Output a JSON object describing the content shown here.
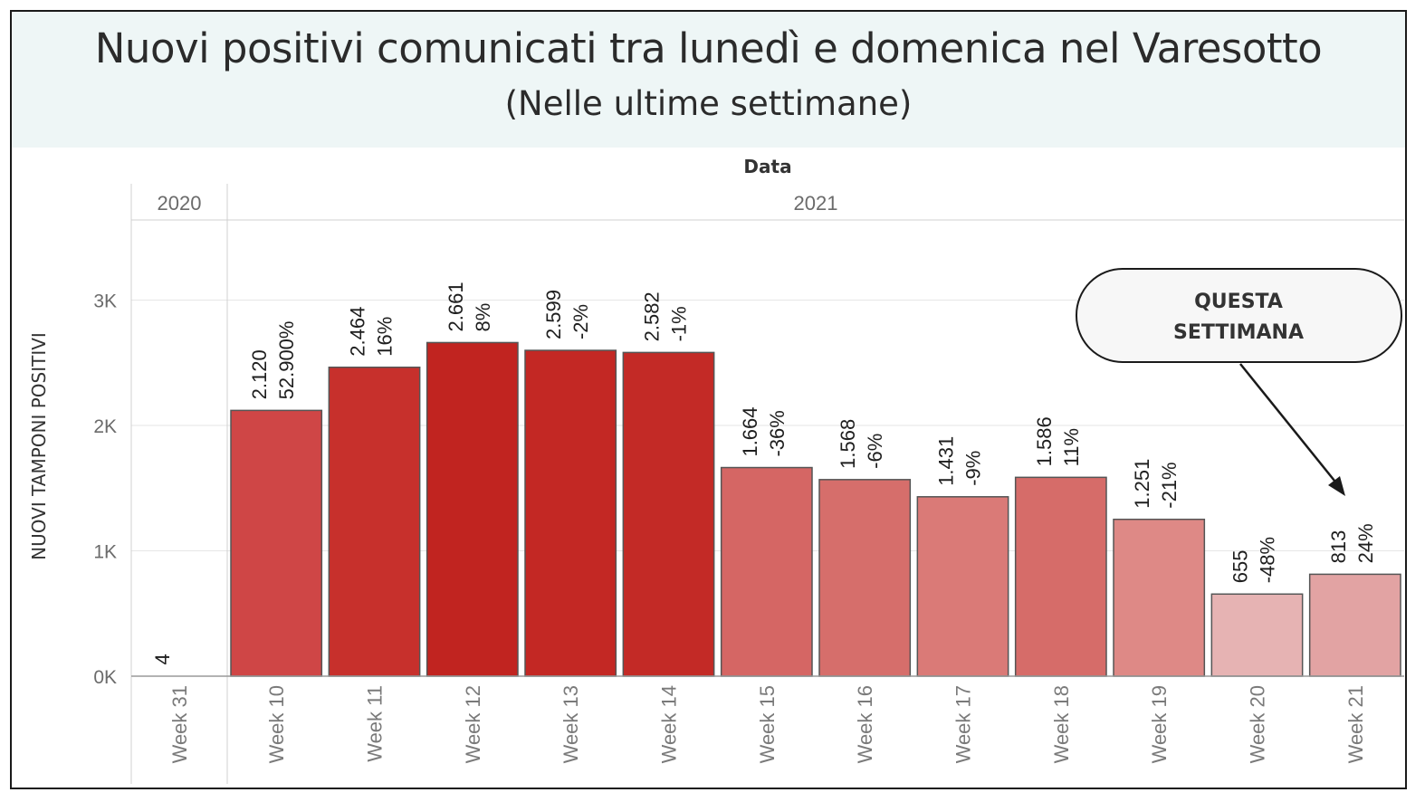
{
  "header": {
    "title": "Nuovi positivi comunicati tra lunedì e domenica nel Varesotto",
    "subtitle": "(Nelle ultime settimane)"
  },
  "chart_data": {
    "type": "bar",
    "column_header": "Data",
    "ylabel": "NUOVI TAMPONI POSITIVI",
    "ylim": [
      0,
      3600
    ],
    "y_ticks": [
      {
        "value": 0,
        "label": "0K"
      },
      {
        "value": 1000,
        "label": "1K"
      },
      {
        "value": 2000,
        "label": "2K"
      },
      {
        "value": 3000,
        "label": "3K"
      }
    ],
    "grid": true,
    "years": [
      {
        "label": "2020",
        "weeks": [
          "Week 31"
        ]
      },
      {
        "label": "2021",
        "weeks": [
          "Week 10",
          "Week 11",
          "Week 12",
          "Week 13",
          "Week 14",
          "Week 15",
          "Week 16",
          "Week 17",
          "Week 18",
          "Week 19",
          "Week 20",
          "Week 21"
        ]
      }
    ],
    "categories": [
      "Week 31",
      "Week 10",
      "Week 11",
      "Week 12",
      "Week 13",
      "Week 14",
      "Week 15",
      "Week 16",
      "Week 17",
      "Week 18",
      "Week 19",
      "Week 20",
      "Week 21"
    ],
    "values": [
      4,
      2120,
      2464,
      2661,
      2599,
      2582,
      1664,
      1568,
      1431,
      1586,
      1251,
      655,
      813
    ],
    "value_labels": [
      "4",
      "2.120",
      "2.464",
      "2.661",
      "2.599",
      "2.582",
      "1.664",
      "1.568",
      "1.431",
      "1.586",
      "1.251",
      "655",
      "813"
    ],
    "change_labels": [
      "",
      "52.900%",
      "16%",
      "8%",
      "-2%",
      "-1%",
      "-36%",
      "-6%",
      "-9%",
      "11%",
      "-21%",
      "-48%",
      "24%"
    ],
    "colors": [
      "#e8b3b3",
      "#cf4646",
      "#c7302c",
      "#c12420",
      "#c32824",
      "#c32a26",
      "#d56664",
      "#d66e6b",
      "#da7a77",
      "#d66c69",
      "#de8986",
      "#e6b3b3",
      "#e2a3a3"
    ]
  },
  "callout": {
    "lines": [
      "QUESTA",
      "SETTIMANA"
    ],
    "target": "Week 21"
  }
}
